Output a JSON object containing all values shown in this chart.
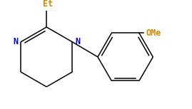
{
  "background_color": "#ffffff",
  "line_color": "#000000",
  "N_color": "#0000cc",
  "Et_color": "#cc8800",
  "OMe_color": "#cc8800",
  "Et_label": "Et",
  "OMe_label": "OMe",
  "N_label": "N",
  "figsize": [
    2.69,
    1.53
  ],
  "dpi": 100,
  "font_size": 8.5,
  "lw": 1.1
}
